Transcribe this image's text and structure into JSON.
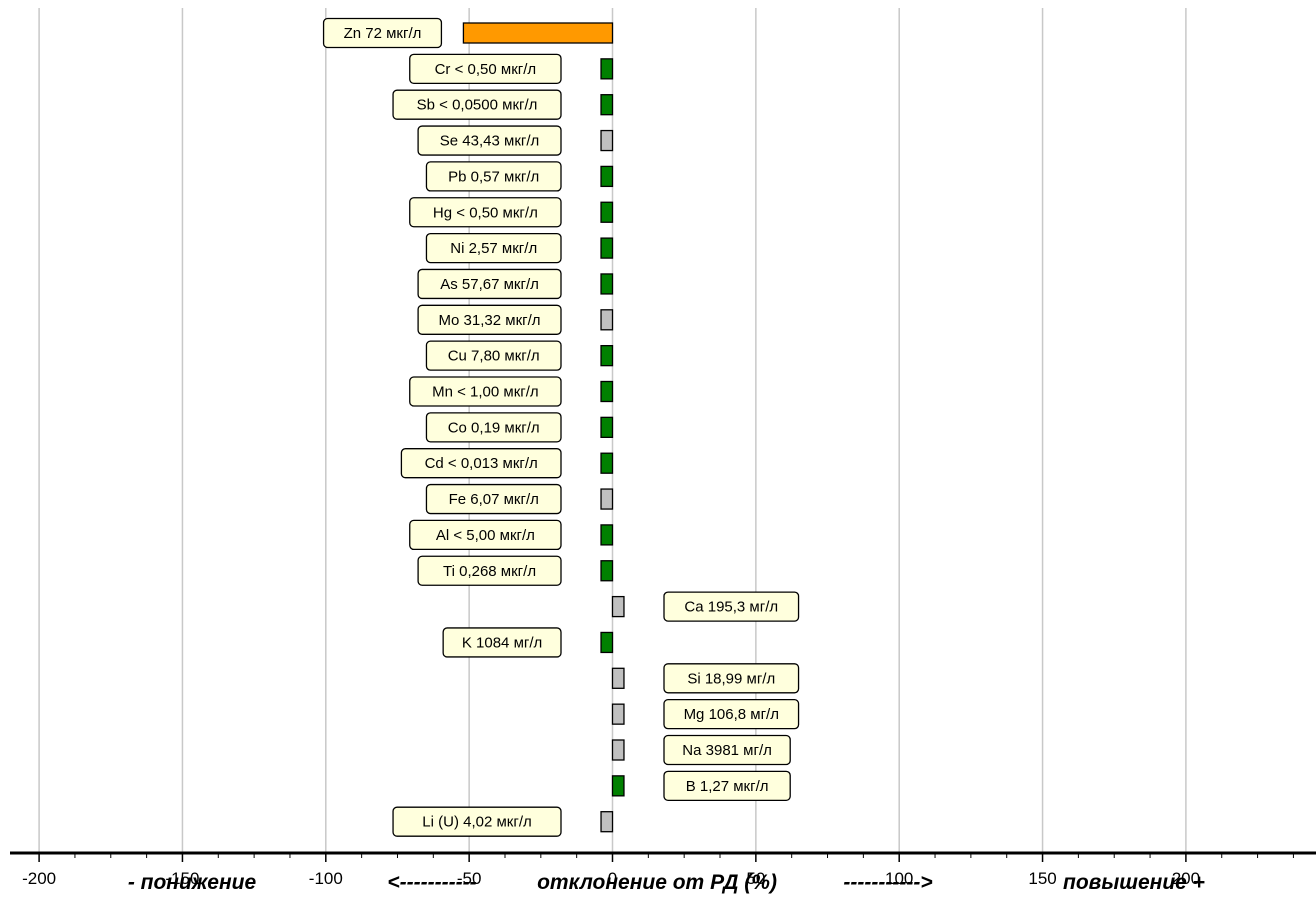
{
  "chart_data": {
    "type": "bar",
    "orientation": "horizontal",
    "xlim": [
      -200,
      240
    ],
    "x_ticks": [
      "-200",
      "-150",
      "-100",
      "-50",
      "0",
      "50",
      "100",
      "150",
      "200"
    ],
    "grid": true,
    "colors": {
      "exceed": "#FF9900",
      "normal": "#008000",
      "neutral": "#C0C0C0",
      "label_bg": "#FFFFDD"
    },
    "categories": [
      "Zn",
      "Cr",
      "Sb",
      "Se",
      "Pb",
      "Hg",
      "Ni",
      "As",
      "Mo",
      "Cu",
      "Mn",
      "Co",
      "Cd",
      "Fe",
      "Al",
      "Ti",
      "Ca",
      "K",
      "Si",
      "Mg",
      "Na",
      "B",
      "Li (U)"
    ],
    "values": [
      -52,
      -4,
      -4,
      -4,
      -4,
      -4,
      -4,
      -4,
      -4,
      -4,
      -4,
      -4,
      -4,
      -4,
      -4,
      -4,
      4,
      -4,
      4,
      4,
      4,
      4,
      -4
    ],
    "status": [
      "exceed",
      "normal",
      "normal",
      "neutral",
      "normal",
      "normal",
      "normal",
      "normal",
      "neutral",
      "normal",
      "normal",
      "normal",
      "normal",
      "neutral",
      "normal",
      "normal",
      "neutral",
      "normal",
      "neutral",
      "neutral",
      "neutral",
      "normal",
      "neutral"
    ],
    "labels": [
      "Zn 72 мкг/л",
      "Cr < 0,50 мкг/л",
      "Sb < 0,0500 мкг/л",
      "Se 43,43 мкг/л",
      "Pb 0,57 мкг/л",
      "Hg < 0,50 мкг/л",
      "Ni 2,57 мкг/л",
      "As 57,67 мкг/л",
      "Mo 31,32 мкг/л",
      "Cu 7,80 мкг/л",
      "Mn < 1,00 мкг/л",
      "Co 0,19 мкг/л",
      "Cd < 0,013 мкг/л",
      "Fe 6,07 мкг/л",
      "Al < 5,00 мкг/л",
      "Ti 0,268 мкг/л",
      "Ca 195,3 мг/л",
      "K 1084 мг/л",
      "Si 18,99 мг/л",
      "Mg 106,8 мг/л",
      "Na 3981 мг/л",
      "B 1,27 мкг/л",
      "Li (U) 4,02 мкг/л"
    ],
    "caption": {
      "left": "- понижение",
      "arrow_left": "<-----------",
      "center": "отклонение от РД (%)",
      "arrow_right": "----------->",
      "right": "повышение +"
    }
  }
}
